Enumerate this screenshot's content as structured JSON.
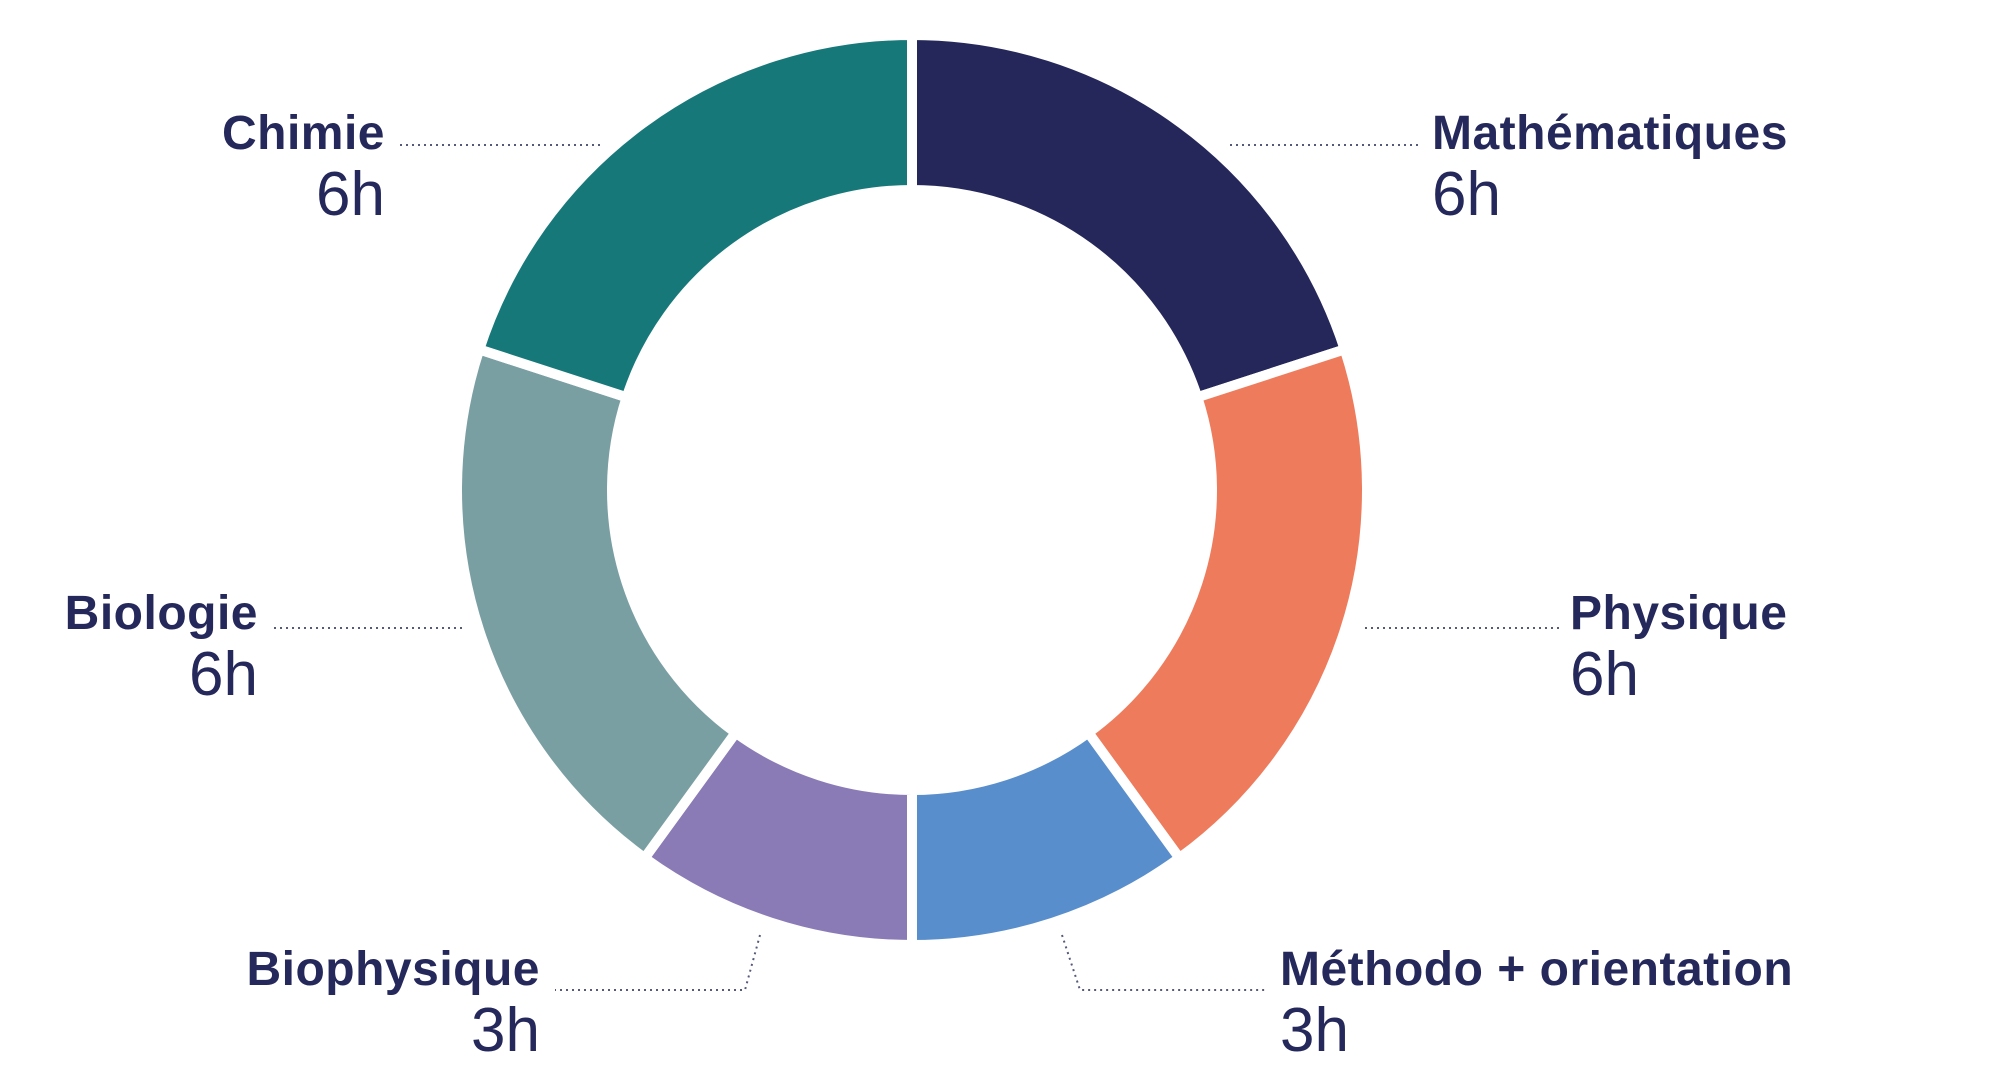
{
  "chart_data": {
    "type": "pie",
    "variant": "donut",
    "unit": "h",
    "slices": [
      {
        "name": "Mathématiques",
        "value": 6,
        "value_label": "6h",
        "color": "#25275a"
      },
      {
        "name": "Physique",
        "value": 6,
        "value_label": "6h",
        "color": "#ee7c5c"
      },
      {
        "name": "Méthodo + orientation",
        "value": 3,
        "value_label": "3h",
        "color": "#598ecc"
      },
      {
        "name": "Biophysique",
        "value": 3,
        "value_label": "3h",
        "color": "#8a7bb6"
      },
      {
        "name": "Biologie",
        "value": 6,
        "value_label": "6h",
        "color": "#7a9fa3"
      },
      {
        "name": "Chimie",
        "value": 6,
        "value_label": "6h",
        "color": "#17787a"
      }
    ]
  }
}
